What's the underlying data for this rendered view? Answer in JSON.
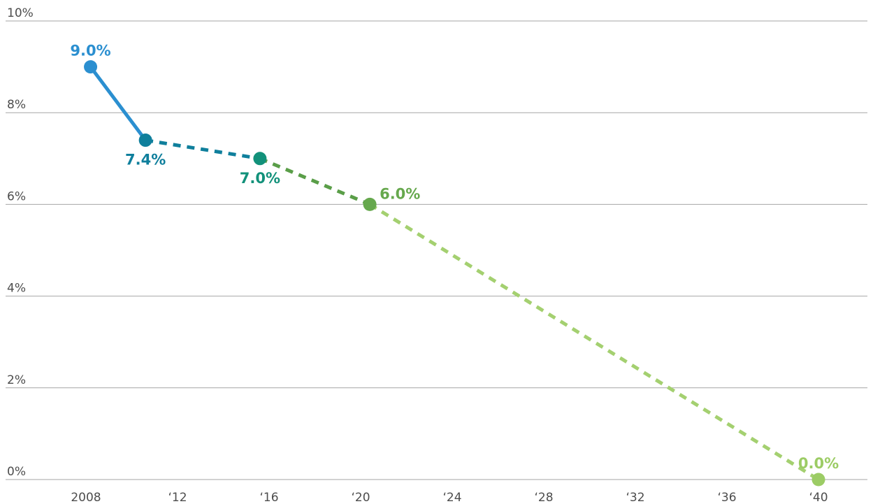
{
  "chart_data": {
    "type": "line",
    "title": "",
    "xlabel": "",
    "ylabel": "",
    "xlim": [
      2007.8,
      2041.0
    ],
    "ylim": [
      0,
      10
    ],
    "grid": true,
    "y_ticks": [
      {
        "value": 0,
        "label": "0%"
      },
      {
        "value": 2,
        "label": "2%"
      },
      {
        "value": 4,
        "label": "4%"
      },
      {
        "value": 6,
        "label": "6%"
      },
      {
        "value": 8,
        "label": "8%"
      },
      {
        "value": 10,
        "label": "10%"
      }
    ],
    "x_ticks": [
      {
        "value": 2008,
        "label": "2008"
      },
      {
        "value": 2012,
        "label": "‘12"
      },
      {
        "value": 2016,
        "label": "‘16"
      },
      {
        "value": 2020,
        "label": "‘20"
      },
      {
        "value": 2024,
        "label": "‘24"
      },
      {
        "value": 2028,
        "label": "‘28"
      },
      {
        "value": 2032,
        "label": "‘32"
      },
      {
        "value": 2036,
        "label": "‘36"
      },
      {
        "value": 2040,
        "label": "‘40"
      }
    ],
    "points": [
      {
        "x": 2008.2,
        "y": 9.0,
        "label": "9.0%",
        "color": "#2b8fd0",
        "label_pos": "above"
      },
      {
        "x": 2010.6,
        "y": 7.4,
        "label": "7.4%",
        "color": "#0f7f9c",
        "label_pos": "below"
      },
      {
        "x": 2015.6,
        "y": 7.0,
        "label": "7.0%",
        "color": "#12917a",
        "label_pos": "below"
      },
      {
        "x": 2020.4,
        "y": 6.0,
        "label": "6.0%",
        "color": "#66a84d",
        "label_pos": "right"
      },
      {
        "x": 2040.0,
        "y": 0.0,
        "label": "0.0%",
        "color": "#9ccc65",
        "label_pos": "above"
      }
    ],
    "segments": [
      {
        "from": 0,
        "to": 1,
        "style": "solid",
        "color": "#2b8fd0"
      },
      {
        "from": 1,
        "to": 2,
        "style": "dashed",
        "color": "#0f7f9c"
      },
      {
        "from": 2,
        "to": 3,
        "style": "dashed",
        "color": "#5a9e48"
      },
      {
        "from": 3,
        "to": 4,
        "style": "dashed",
        "color": "#a4d070"
      }
    ]
  }
}
